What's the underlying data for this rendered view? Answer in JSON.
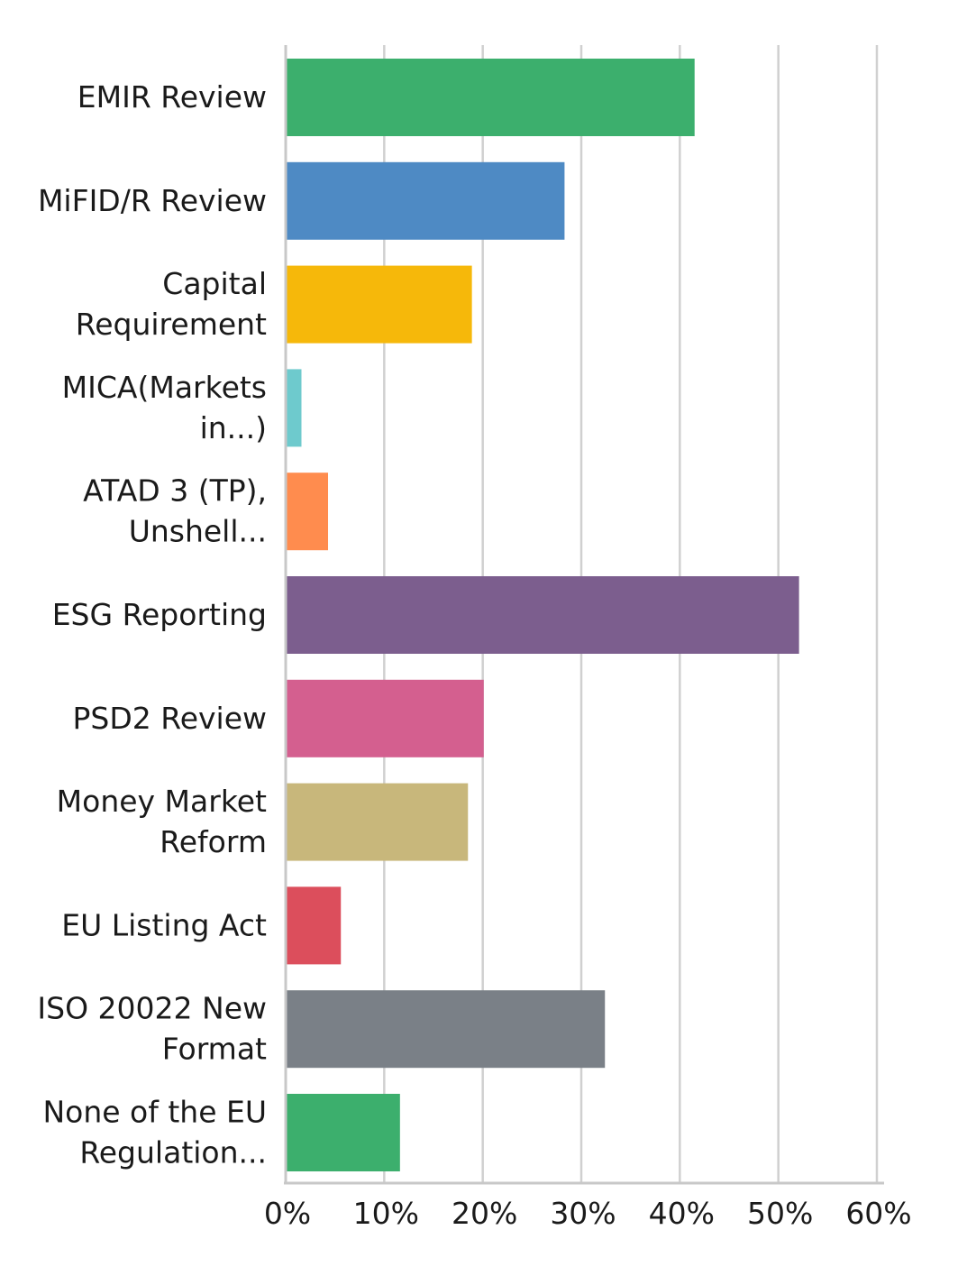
{
  "chart_data": {
    "type": "bar",
    "orientation": "horizontal",
    "categories": [
      [
        "EMIR Review"
      ],
      [
        "MiFID/R Review"
      ],
      [
        "Capital",
        "Requirement"
      ],
      [
        "MICA(Markets",
        "in...)"
      ],
      [
        "ATAD 3 (TP),",
        "Unshell..."
      ],
      [
        "ESG Reporting"
      ],
      [
        "PSD2 Review"
      ],
      [
        "Money Market",
        "Reform"
      ],
      [
        "EU Listing Act"
      ],
      [
        "ISO 20022 New",
        "Format"
      ],
      [
        "None of the EU",
        "Regulation..."
      ]
    ],
    "values": [
      41.5,
      28.3,
      18.9,
      1.6,
      4.3,
      52.1,
      20.1,
      18.5,
      5.6,
      32.4,
      11.6
    ],
    "colors": [
      "#3caf6d",
      "#4e8ac4",
      "#f6b80a",
      "#6ecacd",
      "#ff8c4e",
      "#7c5e8e",
      "#d45f8f",
      "#c8b77b",
      "#dc4e5c",
      "#7a8087",
      "#3caf6d"
    ],
    "xlim": [
      0,
      60
    ],
    "xticks": [
      0,
      10,
      20,
      30,
      40,
      50,
      60
    ],
    "xtick_labels": [
      "0%",
      "10%",
      "20%",
      "30%",
      "40%",
      "50%",
      "60%"
    ],
    "grid": true,
    "legend": false,
    "title": "",
    "xlabel": "",
    "ylabel": ""
  }
}
